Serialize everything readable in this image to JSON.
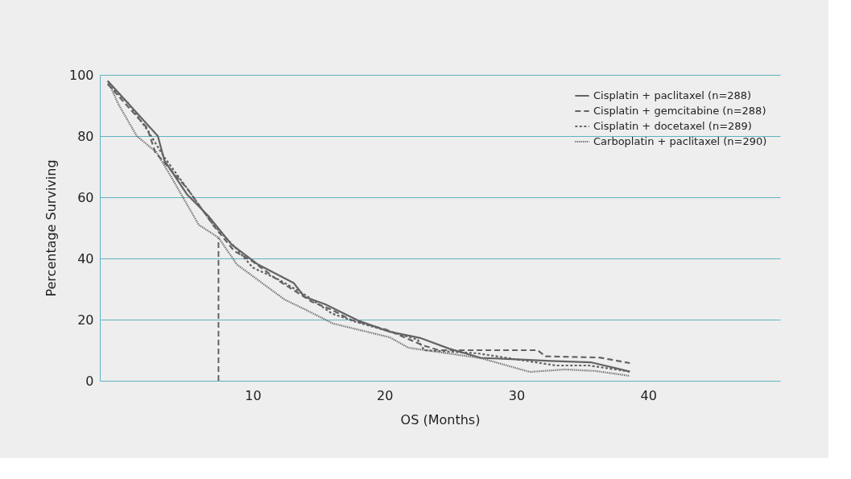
{
  "chart_data": {
    "type": "line",
    "xlabel": "OS (Months)",
    "ylabel": "Percentage Surviving",
    "xlim": [
      -1.6,
      50
    ],
    "xticks": [
      10,
      20,
      30,
      40
    ],
    "ylim": [
      0,
      100
    ],
    "yticks": [
      0,
      20,
      40,
      60,
      80,
      100
    ],
    "grid": "y",
    "legend": "top right",
    "series": [
      {
        "name": "Cisplatin + paclitaxel (n=288)",
        "color": "#636363",
        "line_style": "solid",
        "x": [
          -1,
          2.8,
          3.3,
          5,
          6.6,
          8.4,
          10.4,
          13.1,
          13.9,
          15.5,
          18.1,
          20.4,
          22.7,
          24.9,
          27.3,
          30,
          32.6,
          35.7,
          38.6
        ],
        "values": [
          98,
          80,
          72,
          61,
          54,
          44.5,
          38,
          32,
          27.5,
          25,
          19.5,
          16,
          14,
          10.5,
          7.5,
          7,
          6.5,
          6,
          3
        ]
      },
      {
        "name": "Cisplatin + gemcitabine (n=288)",
        "color": "#636363",
        "line_style": "dashed",
        "x": [
          -1,
          2,
          2.6,
          5,
          7.1,
          8.6,
          10,
          12,
          14.5,
          16,
          17.4,
          20.2,
          22.9,
          24.1,
          31.6,
          32.2,
          36.3,
          38.6
        ],
        "values": [
          97,
          82.6,
          74.7,
          63,
          50.3,
          42.4,
          39,
          32.6,
          25.8,
          23.2,
          20,
          16.6,
          11.6,
          10,
          10,
          8,
          7.6,
          5.8
        ]
      },
      {
        "name": "Cisplatin + docetaxel (n=289)",
        "color": "#636363",
        "line_style": "dotted",
        "x": [
          -1,
          0.5,
          2,
          3.3,
          5,
          7,
          8.8,
          10,
          12,
          14,
          16,
          18,
          20.5,
          22.5,
          23,
          27,
          30,
          33,
          35.5,
          38.6
        ],
        "values": [
          97,
          91,
          82,
          73,
          63,
          51,
          43,
          37,
          33,
          28,
          22,
          19,
          16,
          13.5,
          10,
          9,
          7,
          5,
          5,
          3
        ]
      },
      {
        "name": "Carboplatin + paclitaxel (n=290)",
        "color": "#636363",
        "line_style": "dotted",
        "x": [
          -1,
          -0.2,
          1.2,
          2.7,
          3.9,
          5.9,
          7.4,
          8.8,
          12.4,
          14.3,
          16.1,
          20.4,
          21.8,
          27.3,
          31,
          33.7,
          36,
          38.6
        ],
        "values": [
          98,
          90.5,
          80,
          74.7,
          66,
          51,
          46.8,
          38,
          26.6,
          22.6,
          18.7,
          14.2,
          10.8,
          7.4,
          2.9,
          3.7,
          3.2,
          1.6
        ]
      },
      {
        "type": "line",
        "color": "#636363",
        "line_style": "dashed",
        "x": [
          7.4,
          7.4
        ],
        "values": [
          0,
          46.8
        ]
      }
    ]
  }
}
